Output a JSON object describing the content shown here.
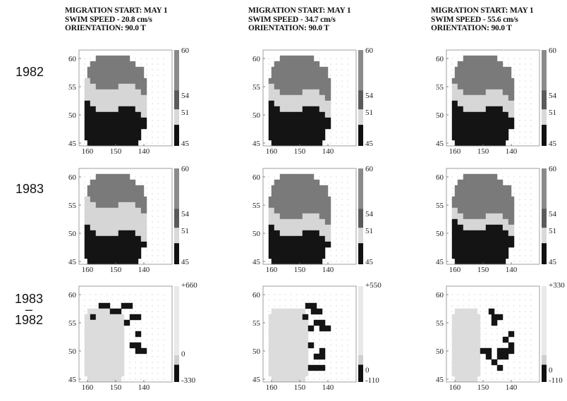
{
  "headers": [
    {
      "line1": "MIGRATION START: MAY 1",
      "line2": "SWIM SPEED -  20.8 cm/s",
      "line3": "ORIENTATION:  90.0 T"
    },
    {
      "line1": "MIGRATION START: MAY 1",
      "line2": "SWIM SPEED -  34.7 cm/s",
      "line3": "ORIENTATION:  90.0 T"
    },
    {
      "line1": "MIGRATION START: MAY 1",
      "line2": "SWIM SPEED -  55.6 cm/s",
      "line3": "ORIENTATION:  90.0 T"
    }
  ],
  "row_labels": [
    {
      "text": "1982"
    },
    {
      "text": "1983"
    },
    {
      "line1": "1983",
      "line2": "–",
      "line3": "1982"
    }
  ],
  "chart_data": [
    {
      "type": "heatmap",
      "row": "1982",
      "swim_speed": "20.8 cm/s",
      "x_ticks": [
        "160",
        "150",
        "140"
      ],
      "y_ticks": [
        "45",
        "50",
        "55",
        "60"
      ],
      "colorbar_ticks": [
        "60",
        "54",
        "51",
        "45"
      ],
      "bands": [
        {
          "range": [
            54,
            60
          ],
          "lat_from": 55,
          "lat_to": 60
        },
        {
          "range": [
            51,
            54
          ],
          "lat_from": 51,
          "lat_to": 55
        },
        {
          "range": [
            45,
            51
          ],
          "lat_from": 45,
          "lat_to": 51
        }
      ]
    },
    {
      "type": "heatmap",
      "row": "1982",
      "swim_speed": "34.7 cm/s",
      "x_ticks": [
        "160",
        "150",
        "140"
      ],
      "y_ticks": [
        "45",
        "50",
        "55",
        "60"
      ],
      "colorbar_ticks": [
        "60",
        "54",
        "51"
      ],
      "colorbar_bottom": "45",
      "bands": [
        {
          "range": [
            54,
            60
          ],
          "lat_from": 54,
          "lat_to": 60
        },
        {
          "range": [
            51,
            54
          ],
          "lat_from": 51,
          "lat_to": 54
        },
        {
          "range": [
            45,
            51
          ],
          "lat_from": 45,
          "lat_to": 51
        }
      ]
    },
    {
      "type": "heatmap",
      "row": "1982",
      "swim_speed": "55.6 cm/s",
      "x_ticks": [
        "160",
        "150",
        "140"
      ],
      "y_ticks": [
        "45",
        "50",
        "55",
        "60"
      ],
      "colorbar_ticks": [
        "60",
        "54",
        "51",
        "45"
      ],
      "bands": [
        {
          "range": [
            54,
            60
          ],
          "lat_from": 54,
          "lat_to": 60
        },
        {
          "range": [
            51,
            54
          ],
          "lat_from": 51,
          "lat_to": 54
        },
        {
          "range": [
            45,
            51
          ],
          "lat_from": 45,
          "lat_to": 51
        }
      ]
    },
    {
      "type": "heatmap",
      "row": "1983",
      "swim_speed": "20.8 cm/s",
      "x_ticks": [
        "160",
        "150",
        "140"
      ],
      "y_ticks": [
        "45",
        "50",
        "55",
        "60"
      ],
      "colorbar_ticks": [
        "60",
        "54",
        "51",
        "45"
      ],
      "bands": [
        {
          "range": [
            54,
            60
          ],
          "lat_from": 55,
          "lat_to": 60
        },
        {
          "range": [
            51,
            54
          ],
          "lat_from": 50,
          "lat_to": 55
        },
        {
          "range": [
            45,
            51
          ],
          "lat_from": 45,
          "lat_to": 50
        }
      ]
    },
    {
      "type": "heatmap",
      "row": "1983",
      "swim_speed": "34.7 cm/s",
      "x_ticks": [
        "160",
        "150",
        "140"
      ],
      "y_ticks": [
        "45",
        "50",
        "55",
        "60"
      ],
      "colorbar_ticks": [
        "60",
        "54",
        "51",
        "45"
      ],
      "bands": [
        {
          "range": [
            54,
            60
          ],
          "lat_from": 53,
          "lat_to": 60
        },
        {
          "range": [
            51,
            54
          ],
          "lat_from": 50,
          "lat_to": 53
        },
        {
          "range": [
            45,
            51
          ],
          "lat_from": 45,
          "lat_to": 50
        }
      ]
    },
    {
      "type": "heatmap",
      "row": "1983",
      "swim_speed": "55.6 cm/s",
      "x_ticks": [
        "160",
        "150",
        "140"
      ],
      "y_ticks": [
        "45",
        "50",
        "55",
        "60"
      ],
      "colorbar_ticks": [
        "60",
        "54",
        "51",
        "45"
      ],
      "bands": [
        {
          "range": [
            54,
            60
          ],
          "lat_from": 53,
          "lat_to": 60
        },
        {
          "range": [
            51,
            54
          ],
          "lat_from": 51,
          "lat_to": 53
        },
        {
          "range": [
            45,
            51
          ],
          "lat_from": 45,
          "lat_to": 51
        }
      ]
    },
    {
      "type": "heatmap",
      "row": "1983 – 1982",
      "swim_speed": "20.8 cm/s",
      "x_ticks": [
        "160",
        "150",
        "140"
      ],
      "y_ticks": [
        "45",
        "50",
        "55",
        "60"
      ],
      "colorbar_ticks": [
        "+660",
        "0",
        "-330"
      ],
      "colorbar_range": [
        -330,
        660
      ]
    },
    {
      "type": "heatmap",
      "row": "1983 – 1982",
      "swim_speed": "34.7 cm/s",
      "x_ticks": [
        "160",
        "150",
        "140"
      ],
      "y_ticks": [
        "45",
        "50",
        "55",
        "60"
      ],
      "colorbar_ticks": [
        "+550",
        "0",
        "-110"
      ],
      "colorbar_range": [
        -110,
        550
      ]
    },
    {
      "type": "heatmap",
      "row": "1983 – 1982",
      "swim_speed": "55.6 cm/s",
      "x_ticks": [
        "160",
        "150",
        "140"
      ],
      "y_ticks": [
        "45",
        "50",
        "55",
        "60"
      ],
      "colorbar_ticks": [
        "+330",
        "0",
        "-110"
      ],
      "colorbar_range": [
        -110,
        330
      ]
    }
  ],
  "colors": {
    "band_high": "#7a7a7a",
    "band_mid": "#d6d6d6",
    "band_low": "#141414",
    "diff_light": "#dcdcdc",
    "diff_dark": "#151515"
  }
}
